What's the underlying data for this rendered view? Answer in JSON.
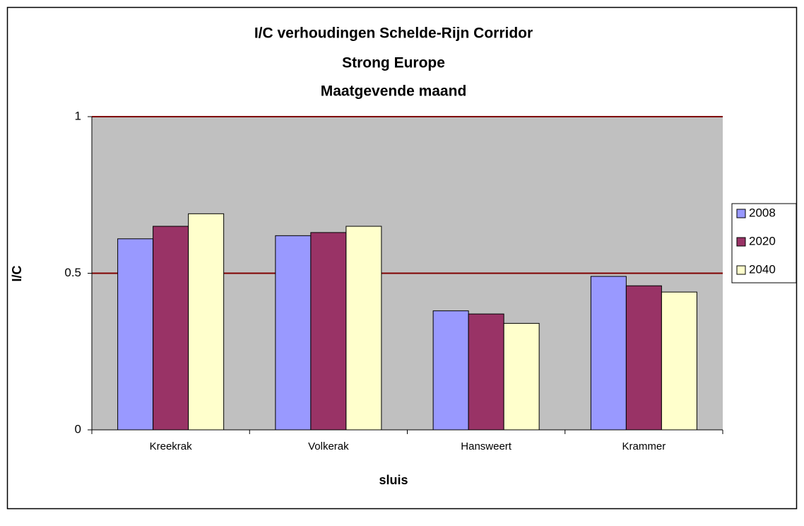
{
  "chart_data": {
    "type": "bar",
    "title": [
      "I/C verhoudingen Schelde-Rijn Corridor",
      "Strong Europe",
      "Maatgevende maand"
    ],
    "x_label": "sluis",
    "y_label": "I/C",
    "categories": [
      "Kreekrak",
      "Volkerak",
      "Hansweert",
      "Krammer"
    ],
    "series": [
      {
        "name": "2008",
        "color": "#9999ff",
        "values": [
          0.61,
          0.62,
          0.38,
          0.49
        ]
      },
      {
        "name": "2020",
        "color": "#993366",
        "values": [
          0.65,
          0.63,
          0.37,
          0.46
        ]
      },
      {
        "name": "2040",
        "color": "#ffffcc",
        "values": [
          0.69,
          0.65,
          0.34,
          0.44
        ]
      }
    ],
    "ylim": [
      0,
      1
    ],
    "yticks": [
      0,
      0.5,
      1
    ],
    "grid": true,
    "grid_color": "#800000",
    "plot_background": "#c0c0c0",
    "legend": "right"
  }
}
